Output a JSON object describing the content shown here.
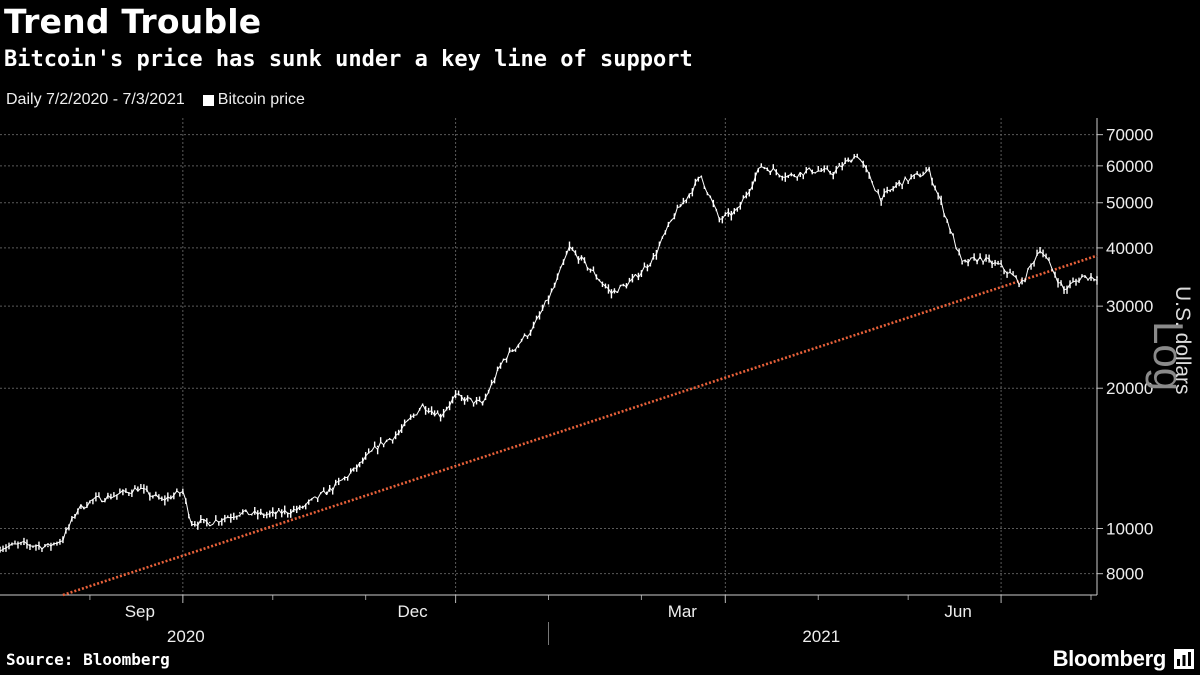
{
  "title": "Trend Trouble",
  "subtitle": "Bitcoin's price has sunk under a key line of support",
  "legend_period": "Daily 7/2/2020 - 7/3/2021",
  "legend_series": "Bitcoin price",
  "source": "Source: Bloomberg",
  "brand": "Bloomberg",
  "colors": {
    "background": "#000000",
    "price": "#ffffff",
    "trendline": "#e8613a",
    "grid": "#555555"
  },
  "chart_data": {
    "type": "line",
    "title": "Trend Trouble",
    "subtitle": "Bitcoin's price has sunk under a key line of support",
    "period": "Daily 7/2/2020 - 7/3/2021",
    "ylabel": "U.S. dollars",
    "yscale_label": "Log",
    "yscale": "log",
    "xlim": [
      "2020-07-02",
      "2021-07-03"
    ],
    "ylim": [
      7200,
      76000
    ],
    "y_ticks": [
      8000,
      10000,
      20000,
      30000,
      40000,
      50000,
      60000,
      70000
    ],
    "y_tick_labels": [
      "8000",
      "10000",
      "20000",
      "30000",
      "40000",
      "50000",
      "60000",
      "70000"
    ],
    "x_ticks": [
      {
        "date": "2020-09-01",
        "label": "Sep"
      },
      {
        "date": "2020-12-01",
        "label": "Dec"
      },
      {
        "date": "2021-03-01",
        "label": "Mar"
      },
      {
        "date": "2021-06-01",
        "label": "Jun"
      }
    ],
    "x_year_labels": [
      {
        "date": "2020-09-01",
        "label": "2020"
      },
      {
        "date": "2021-04-01",
        "label": "2021"
      }
    ],
    "grid": true,
    "legend": "top-left",
    "series": [
      {
        "name": "Bitcoin price",
        "style": "bar-range",
        "points": [
          {
            "x": "2020-07-02",
            "y": 9100
          },
          {
            "x": "2020-07-10",
            "y": 9250
          },
          {
            "x": "2020-07-18",
            "y": 9150
          },
          {
            "x": "2020-07-23",
            "y": 9500
          },
          {
            "x": "2020-07-28",
            "y": 11000
          },
          {
            "x": "2020-08-02",
            "y": 11500
          },
          {
            "x": "2020-08-10",
            "y": 11800
          },
          {
            "x": "2020-08-17",
            "y": 12200
          },
          {
            "x": "2020-08-25",
            "y": 11500
          },
          {
            "x": "2020-09-01",
            "y": 12000
          },
          {
            "x": "2020-09-04",
            "y": 10300
          },
          {
            "x": "2020-09-10",
            "y": 10300
          },
          {
            "x": "2020-09-20",
            "y": 10800
          },
          {
            "x": "2020-09-30",
            "y": 10700
          },
          {
            "x": "2020-10-10",
            "y": 11000
          },
          {
            "x": "2020-10-21",
            "y": 12200
          },
          {
            "x": "2020-10-28",
            "y": 13300
          },
          {
            "x": "2020-11-05",
            "y": 15000
          },
          {
            "x": "2020-11-12",
            "y": 16000
          },
          {
            "x": "2020-11-20",
            "y": 18400
          },
          {
            "x": "2020-11-26",
            "y": 17500
          },
          {
            "x": "2020-12-01",
            "y": 19200
          },
          {
            "x": "2020-12-10",
            "y": 18500
          },
          {
            "x": "2020-12-17",
            "y": 23000
          },
          {
            "x": "2020-12-27",
            "y": 27000
          },
          {
            "x": "2021-01-03",
            "y": 33000
          },
          {
            "x": "2021-01-08",
            "y": 40000
          },
          {
            "x": "2021-01-15",
            "y": 36000
          },
          {
            "x": "2021-01-22",
            "y": 32000
          },
          {
            "x": "2021-01-29",
            "y": 34000
          },
          {
            "x": "2021-02-05",
            "y": 38000
          },
          {
            "x": "2021-02-12",
            "y": 47000
          },
          {
            "x": "2021-02-21",
            "y": 57000
          },
          {
            "x": "2021-02-27",
            "y": 46000
          },
          {
            "x": "2021-03-05",
            "y": 48000
          },
          {
            "x": "2021-03-13",
            "y": 60000
          },
          {
            "x": "2021-03-22",
            "y": 57000
          },
          {
            "x": "2021-03-30",
            "y": 58700
          },
          {
            "x": "2021-04-06",
            "y": 58000
          },
          {
            "x": "2021-04-14",
            "y": 63500
          },
          {
            "x": "2021-04-22",
            "y": 51000
          },
          {
            "x": "2021-04-28",
            "y": 55000
          },
          {
            "x": "2021-05-08",
            "y": 58500
          },
          {
            "x": "2021-05-12",
            "y": 50000
          },
          {
            "x": "2021-05-19",
            "y": 37000
          },
          {
            "x": "2021-05-25",
            "y": 38000
          },
          {
            "x": "2021-06-01",
            "y": 36500
          },
          {
            "x": "2021-06-08",
            "y": 33500
          },
          {
            "x": "2021-06-14",
            "y": 40000
          },
          {
            "x": "2021-06-22",
            "y": 32500
          },
          {
            "x": "2021-06-28",
            "y": 34700
          },
          {
            "x": "2021-07-03",
            "y": 34600
          }
        ]
      },
      {
        "name": "Support trendline",
        "style": "dotted-line",
        "points": [
          {
            "x": "2020-07-23",
            "y": 7200
          },
          {
            "x": "2021-07-03",
            "y": 38500
          }
        ]
      }
    ]
  }
}
